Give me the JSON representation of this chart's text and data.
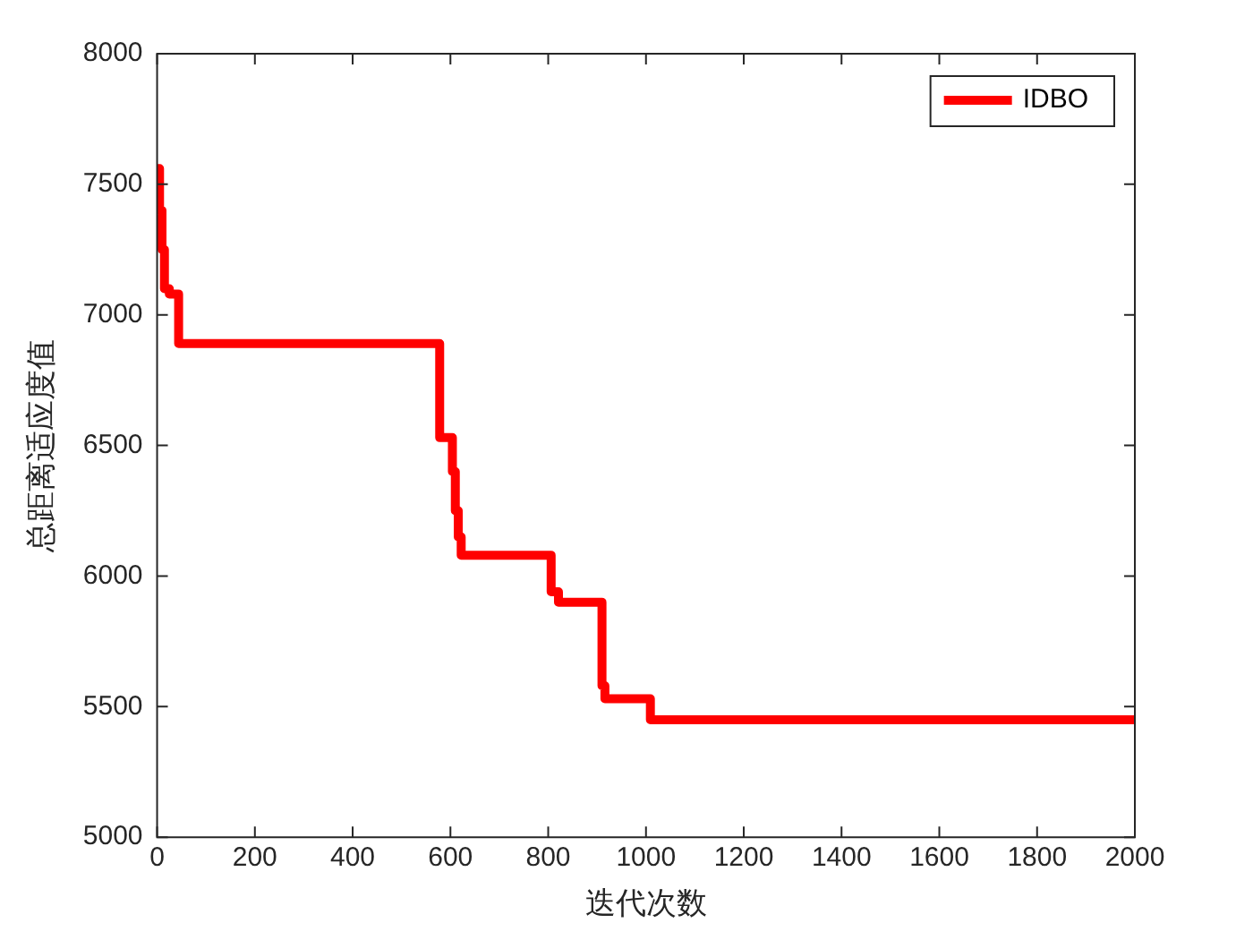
{
  "chart_data": {
    "type": "step",
    "xlabel": "迭代次数",
    "ylabel": "总距离适应度值",
    "xlim": [
      0,
      2000
    ],
    "xticks": [
      0,
      200,
      400,
      600,
      800,
      1000,
      1200,
      1400,
      1600,
      1800,
      2000
    ],
    "ylim": [
      5000,
      8000
    ],
    "yticks": [
      5000,
      5500,
      6000,
      6500,
      7000,
      7500,
      8000
    ],
    "grid": false,
    "legend": "top right",
    "marker": "none",
    "line_style": "solid",
    "series": [
      {
        "name": "IDBO",
        "color": "#ff0000",
        "x": [
          0,
          5,
          10,
          15,
          25,
          44,
          578,
          604,
          610,
          616,
          622,
          806,
          821,
          910,
          916,
          1009,
          2000
        ],
        "values": [
          7560,
          7400,
          7250,
          7100,
          7080,
          6890,
          6530,
          6400,
          6250,
          6150,
          6080,
          5940,
          5900,
          5580,
          5530,
          5450,
          5450
        ]
      }
    ]
  }
}
